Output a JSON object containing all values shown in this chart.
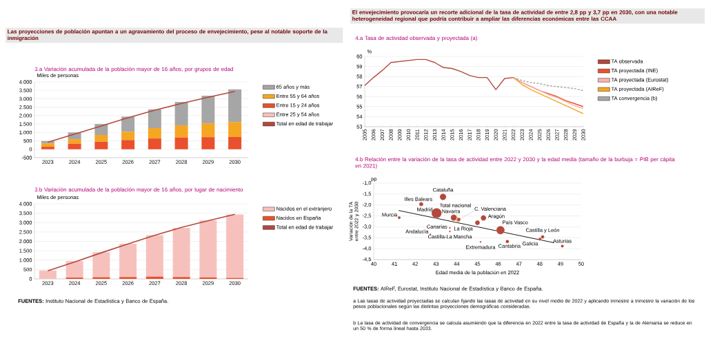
{
  "chart_data": [
    {
      "type": "bar",
      "title": "3.a  Variación acumulada de la población mayor de 16 años, por grupos de edad",
      "ylabel": "Miles de personas",
      "stacked": true,
      "legend": "right",
      "grid": "y",
      "categories": [
        "2023",
        "2024",
        "2025",
        "2026",
        "2027",
        "2028",
        "2029",
        "2030"
      ],
      "ylim": [
        -500,
        4000
      ],
      "yticks": [
        {
          "value": -500,
          "label": "-500"
        },
        0,
        {
          "value": 500,
          "label": "500"
        },
        {
          "value": 1000,
          "label": "1.000"
        },
        {
          "value": 1500,
          "label": "1.500"
        },
        {
          "value": 2000,
          "label": "2.000"
        },
        {
          "value": 2500,
          "label": "2.500"
        },
        {
          "value": 3000,
          "label": "3.000"
        },
        {
          "value": 3500,
          "label": "3.500"
        },
        {
          "value": 4000,
          "label": "4.000"
        }
      ],
      "series": [
        {
          "name": "Entre 25 y 54 años",
          "color": "#f6c1bd",
          "values": [
            0,
            0,
            0,
            0,
            0,
            0,
            null,
            null
          ]
        },
        {
          "name": "Entre 15 y 24 años",
          "color": "#e9502d",
          "values": [
            150,
            330,
            450,
            550,
            640,
            700,
            720,
            730
          ]
        },
        {
          "name": "Entre 55 y 64 años",
          "color": "#f5a623",
          "values": [
            200,
            270,
            400,
            490,
            620,
            720,
            820,
            890
          ]
        },
        {
          "name": "65 años y más",
          "color": "#a6a6a6",
          "values": [
            140,
            400,
            650,
            900,
            1110,
            1390,
            1640,
            1940
          ]
        },
        {
          "name": "Total en edad de trabajar",
          "type": "line",
          "color": "#b4483d",
          "values": [
            420,
            900,
            1380,
            1870,
            2320,
            2720,
            3090,
            3440
          ]
        }
      ],
      "annotations": [
        "Las proyecciones de población apuntan a un agravamiento del proceso de envejecimiento, pese al notable soporte de la inmigración"
      ]
    },
    {
      "type": "bar",
      "title": "3.b  Variación acumulada de la población mayor de 16 años, por lugar de nacimiento",
      "ylabel": "Miles de personas",
      "stacked": true,
      "legend": "right",
      "grid": "y",
      "categories": [
        "2023",
        "2024",
        "2025",
        "2026",
        "2027",
        "2028",
        "2029",
        "2030"
      ],
      "ylim": [
        0,
        4000
      ],
      "yticks": [
        0,
        {
          "value": 500,
          "label": "500"
        },
        {
          "value": 1000,
          "label": "1.000"
        },
        {
          "value": 1500,
          "label": "1.500"
        },
        {
          "value": 2000,
          "label": "2.000"
        },
        {
          "value": 2500,
          "label": "2.500"
        },
        {
          "value": 3000,
          "label": "3.000"
        },
        {
          "value": 3500,
          "label": "3.500"
        },
        {
          "value": 4000,
          "label": "4.000"
        }
      ],
      "series": [
        {
          "name": "Nacidos en España",
          "color": "#e9502d",
          "values": [
            null,
            70,
            90,
            100,
            120,
            100,
            80,
            50
          ]
        },
        {
          "name": "Nacidos en el extranjero",
          "color": "#f6c1bd",
          "values": [
            450,
            880,
            1330,
            1770,
            2210,
            2620,
            3040,
            3380
          ]
        },
        {
          "name": "Total en edad de trabajar",
          "type": "line",
          "color": "#b4483d",
          "values": [
            430,
            900,
            1390,
            1860,
            2320,
            2740,
            3100,
            3440
          ]
        }
      ],
      "annotations": [
        "**FUENTES:** Instituto Nacional de Estadística y Banco de España."
      ]
    },
    {
      "type": "line",
      "title": "4.a  Tasa de actividad observada y proyectada (a)",
      "ylabel": "%",
      "legend": "right",
      "grid": "y",
      "xlim": [
        2005,
        2030
      ],
      "xticks": [
        2005,
        2006,
        2007,
        2008,
        2009,
        2010,
        2011,
        2012,
        2013,
        2014,
        2015,
        2016,
        2017,
        2018,
        2019,
        2020,
        2021,
        2022,
        2023,
        2024,
        2025,
        2026,
        2027,
        2028,
        2029,
        2030
      ],
      "ylim": [
        53,
        60
      ],
      "yticks": [
        53,
        54,
        55,
        56,
        57,
        58,
        59,
        60
      ],
      "series": [
        {
          "name": "TA observada",
          "color": "#b4483d",
          "x": [
            2005,
            2006,
            2007,
            2008,
            2009,
            2010,
            2011,
            2012,
            2013,
            2014,
            2015,
            2016,
            2017,
            2018,
            2019,
            2020,
            2021,
            2022
          ],
          "values": [
            57.1,
            57.9,
            58.6,
            59.4,
            59.5,
            59.6,
            59.7,
            59.7,
            59.4,
            58.9,
            58.8,
            58.5,
            58.1,
            57.9,
            57.9,
            56.7,
            57.8,
            57.9
          ]
        },
        {
          "name": "TA proyectada (INE)",
          "color": "#e9502d",
          "x": [
            2022,
            2023,
            2024,
            2025,
            2026,
            2027,
            2028,
            2029,
            2030
          ],
          "values": [
            57.9,
            57.4,
            57.0,
            56.6,
            56.3,
            56.0,
            55.6,
            55.3,
            55.0
          ]
        },
        {
          "name": "TA proyectada (Eurostat)",
          "color": "#f6b3b0",
          "x": [
            2022,
            2023,
            2024,
            2025,
            2026,
            2027,
            2028,
            2029,
            2030
          ],
          "values": [
            57.9,
            57.4,
            57.0,
            56.6,
            56.2,
            55.9,
            55.5,
            55.1,
            54.8
          ]
        },
        {
          "name": "TA proyectada (AIReF)",
          "color": "#f5a623",
          "x": [
            2022,
            2023,
            2024,
            2025,
            2026,
            2027,
            2028,
            2029,
            2030
          ],
          "values": [
            57.9,
            57.2,
            56.7,
            56.3,
            55.9,
            55.5,
            55.1,
            54.7,
            54.3
          ]
        },
        {
          "name": "TA convergencia (b)",
          "color": "#a6a6a6",
          "line_style": "dashed",
          "x": [
            2022,
            2023,
            2024,
            2025,
            2026,
            2027,
            2028,
            2029,
            2030
          ],
          "values": [
            57.9,
            57.6,
            57.4,
            57.3,
            57.1,
            57.0,
            56.9,
            56.8,
            56.6
          ]
        }
      ],
      "annotations": [
        "El envejecimiento provocaría un recorte adicional de la tasa de actividad de entre 2,8 pp y 3,7 pp en 2030, con una notable heterogeneidad regional que podría contribuir a ampliar las diferencias económicas entre las CCAA"
      ]
    },
    {
      "type": "bubble",
      "title": "4.b  Relación entre la variación de la tasa de actividad entre 2022 y 2030 y la edad media (tamaño de la burbuja = PIB per cápita en 2021)",
      "xlabel": "Edad media de la población en 2022",
      "ylabel": "Variación de la TA entre 2022 y 2030",
      "grid": "y",
      "xlim": [
        40,
        50
      ],
      "xticks": [
        40,
        41,
        42,
        43,
        44,
        45,
        46,
        47,
        48,
        49,
        50
      ],
      "ylim": [
        -4.5,
        -1.0
      ],
      "yticks": [
        {
          "value": -4.5,
          "label": "-4,5"
        },
        {
          "value": -4.0,
          "label": "-4,0"
        },
        {
          "value": -3.5,
          "label": "-3,5"
        },
        {
          "value": -3.0,
          "label": "-3,0"
        },
        {
          "value": -2.5,
          "label": "-2,5"
        },
        {
          "value": -2.0,
          "label": "-2,0"
        },
        {
          "value": -1.5,
          "label": "-1,5"
        },
        {
          "value": -1.0,
          "label": "-1,0"
        }
      ],
      "series": [
        {
          "type": "bubble",
          "x": [
            43.34,
            42.29,
            43.03,
            41.23,
            43.86,
            44.07,
            44.1,
            45.29,
            45.0,
            46.11,
            43.67,
            42.73,
            43.67,
            45.15,
            46.44,
            48.01,
            48.14,
            49.09
          ],
          "values": [
            -1.63,
            -1.96,
            -2.37,
            -2.58,
            -2.58,
            -2.69,
            -2.66,
            -2.59,
            -2.81,
            -3.15,
            -3.05,
            -3.35,
            -3.21,
            -3.69,
            -3.67,
            -3.56,
            -3.46,
            -3.88
          ],
          "sizes": [
            0.41,
            0.17,
            1,
            0.08,
            0.38,
            0.17,
            0.12,
            0.3,
            0.23,
            0.68,
            0.03,
            0.03,
            0.03,
            0.03,
            0.12,
            0.09,
            0.12,
            0.09
          ],
          "colors": [
            "#b4483d",
            "#b4483d",
            "#b4483d",
            "#b4483d",
            "#b4483d",
            "#f5a623",
            "#b4483d",
            "#b4483d",
            "#b4483d",
            "#b4483d",
            "#b4483d",
            "#b4483d",
            "#b4483d",
            "#b4483d",
            "#b4483d",
            "#b4483d",
            "#b4483d",
            "#b4483d"
          ]
        },
        {
          "type": "line",
          "color": "#1a1a1a",
          "x": [
            41.2,
            48.7
          ],
          "values": [
            -2.25,
            -3.73
          ]
        }
      ],
      "annotations": [
        {
          "text": "Cataluña",
          "x": 43.34,
          "y": -1.63
        },
        {
          "text": "Illes Balears",
          "x": 42.29,
          "y": -1.96
        },
        {
          "text": "Madrid",
          "x": 43.03,
          "y": -2.37
        },
        {
          "text": "Murcia",
          "x": 41.23,
          "y": -2.58
        },
        {
          "text": "Navarra",
          "x": 43.86,
          "y": -2.58
        },
        {
          "text": "Total nacional",
          "x": 44.07,
          "y": -2.69
        },
        {
          "text": "C. Valenciana",
          "x": 44.1,
          "y": -2.66
        },
        {
          "text": "Aragón",
          "x": 45.29,
          "y": -2.59
        },
        {
          "text": "La Rioja",
          "x": 45.0,
          "y": -2.81
        },
        {
          "text": "País Vasco",
          "x": 46.11,
          "y": -3.15
        },
        {
          "text": "Canarias",
          "x": 43.67,
          "y": -3.05
        },
        {
          "text": "Andalucía",
          "x": 42.73,
          "y": -3.35
        },
        {
          "text": "Castilla-La Mancha",
          "x": 43.67,
          "y": -3.21
        },
        {
          "text": "Extremadura",
          "x": 45.15,
          "y": -3.69
        },
        {
          "text": "Cantabria",
          "x": 46.44,
          "y": -3.67
        },
        {
          "text": "Galicia",
          "x": 48.01,
          "y": -3.56
        },
        {
          "text": "Castilla y León",
          "x": 48.14,
          "y": -3.46
        },
        {
          "text": "Asturias",
          "x": 49.09,
          "y": -3.88
        },
        "pp",
        "**FUENTES:** AIReF, Eurostat, Instituto Nacional de Estadística y Banco de España.",
        "a  Las tasas de actividad proyectadas se calculan fijando las tasas de actividad en su nivel medio de 2022 y aplicando trimestre a trimestre la variación de los pesos poblacionales según las distintas proyecciones demográficas consideradas.",
        "b  La tasa de actividad de convergencia se calcula asumiendo que la diferencia en 2022 entre la tasa de actividad de España y la de Alemania se reduce en un 50 % de forma lineal hasta 2033."
      ]
    }
  ]
}
